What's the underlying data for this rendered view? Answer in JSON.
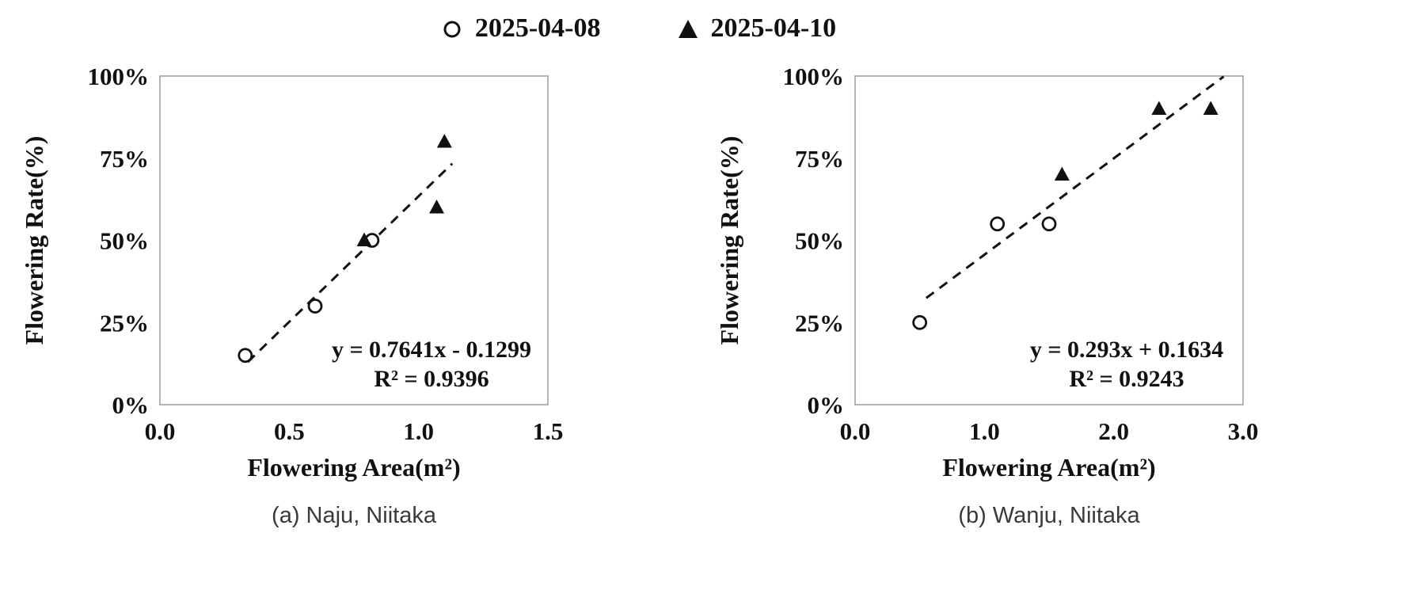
{
  "legend": {
    "items": [
      {
        "marker": "circle-open",
        "label": "2025-04-08"
      },
      {
        "marker": "triangle-filled",
        "label": "2025-04-10"
      }
    ]
  },
  "colors": {
    "marker": "#111111",
    "trendline": "#111111",
    "plot_frame": "#9b9b9b"
  },
  "chart_data": [
    {
      "id": "a",
      "type": "scatter",
      "caption": "(a) Naju, Niitaka",
      "xlabel": "Flowering Area(m²)",
      "ylabel": "Flowering Rate(%)",
      "xlim": [
        0,
        1.5
      ],
      "xticks": [
        0,
        0.5,
        1.0,
        1.5
      ],
      "xtick_labels": [
        "0.0",
        "0.5",
        "1.0",
        "1.5"
      ],
      "ylim": [
        0,
        100
      ],
      "yticks": [
        0,
        25,
        50,
        75,
        100
      ],
      "ytick_labels": [
        "0%",
        "25%",
        "50%",
        "75%",
        "100%"
      ],
      "grid": false,
      "series": [
        {
          "name": "2025-04-08",
          "marker": "circle-open",
          "points": [
            [
              0.33,
              15
            ],
            [
              0.6,
              30
            ],
            [
              0.82,
              50
            ]
          ]
        },
        {
          "name": "2025-04-10",
          "marker": "triangle-filled",
          "points": [
            [
              0.79,
              50
            ],
            [
              1.07,
              60
            ],
            [
              1.1,
              80
            ]
          ]
        }
      ],
      "trendline": {
        "equation": "y = 0.7641x - 0.1299",
        "r2": "R² = 0.9396",
        "slope": 0.7641,
        "intercept": -0.1299,
        "y_multiplier": 100,
        "x_range": [
          0.34,
          1.13
        ],
        "style": "dashed"
      }
    },
    {
      "id": "b",
      "type": "scatter",
      "caption": "(b) Wanju, Niitaka",
      "xlabel": "Flowering Area(m²)",
      "ylabel": "Flowering Rate(%)",
      "xlim": [
        0,
        3.0
      ],
      "xticks": [
        0,
        1.0,
        2.0,
        3.0
      ],
      "xtick_labels": [
        "0.0",
        "1.0",
        "2.0",
        "3.0"
      ],
      "ylim": [
        0,
        100
      ],
      "yticks": [
        0,
        25,
        50,
        75,
        100
      ],
      "ytick_labels": [
        "0%",
        "25%",
        "50%",
        "75%",
        "100%"
      ],
      "grid": false,
      "series": [
        {
          "name": "2025-04-08",
          "marker": "circle-open",
          "points": [
            [
              0.5,
              25
            ],
            [
              1.1,
              55
            ],
            [
              1.5,
              55
            ]
          ]
        },
        {
          "name": "2025-04-10",
          "marker": "triangle-filled",
          "points": [
            [
              1.6,
              70
            ],
            [
              2.35,
              90
            ],
            [
              2.75,
              90
            ]
          ]
        }
      ],
      "trendline": {
        "equation": "y = 0.293x + 0.1634",
        "r2": "R² = 0.9243",
        "slope": 0.293,
        "intercept": 0.1634,
        "y_multiplier": 100,
        "x_range": [
          0.55,
          2.85
        ],
        "style": "dashed"
      }
    }
  ]
}
